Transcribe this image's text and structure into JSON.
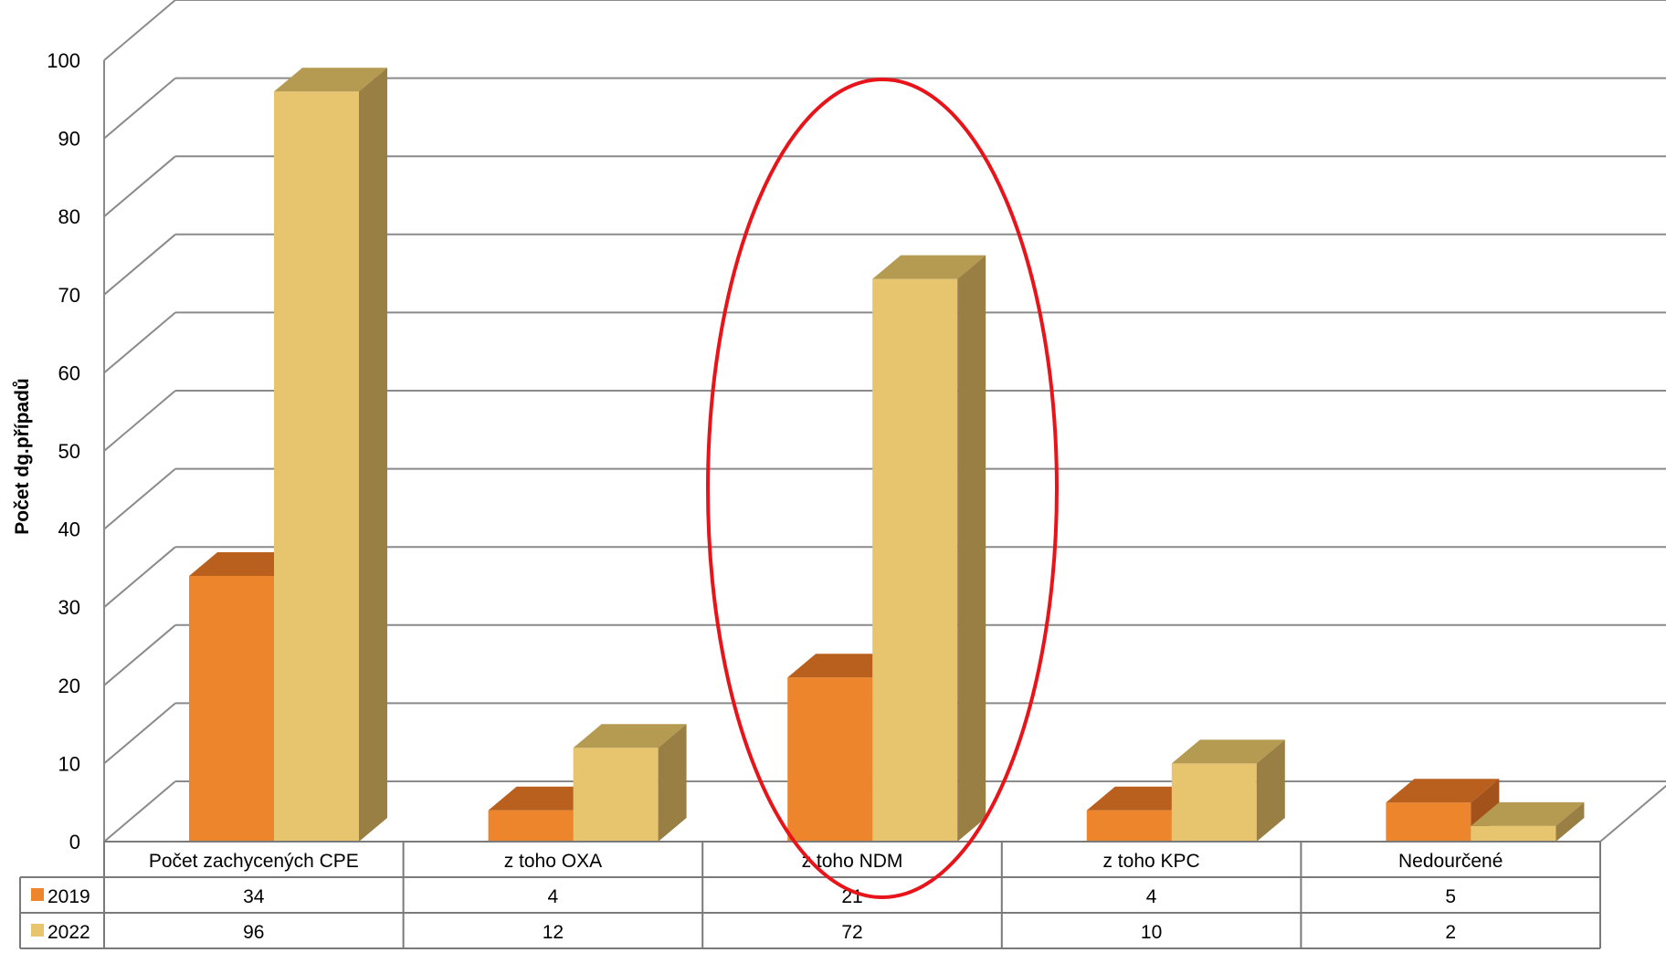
{
  "chart_data": {
    "type": "bar",
    "ylabel": "Počet dg.případů",
    "xlabel": "",
    "title": "",
    "ylim": [
      0,
      100
    ],
    "yticks": [
      0,
      10,
      20,
      30,
      40,
      50,
      60,
      70,
      80,
      90,
      100
    ],
    "categories": [
      "Počet zachycených CPE",
      "z toho OXA",
      "z toho NDM",
      "z toho KPC",
      "Nedourčené"
    ],
    "series": [
      {
        "name": "2019",
        "values": [
          34,
          4,
          21,
          4,
          5
        ]
      },
      {
        "name": "2022",
        "values": [
          96,
          12,
          72,
          10,
          2
        ]
      }
    ],
    "legend": "data-table",
    "grid": true,
    "highlight": {
      "category": "z toho NDM",
      "color": "#e8141a"
    },
    "colors": {
      "2019_front": "#ec852b",
      "2019_top": "#b9601f",
      "2019_side": "#a3521b",
      "2022_front": "#e6c56e",
      "2022_top": "#b59a52",
      "2022_side": "#9a7f45",
      "grid": "#8a8a8a"
    }
  }
}
